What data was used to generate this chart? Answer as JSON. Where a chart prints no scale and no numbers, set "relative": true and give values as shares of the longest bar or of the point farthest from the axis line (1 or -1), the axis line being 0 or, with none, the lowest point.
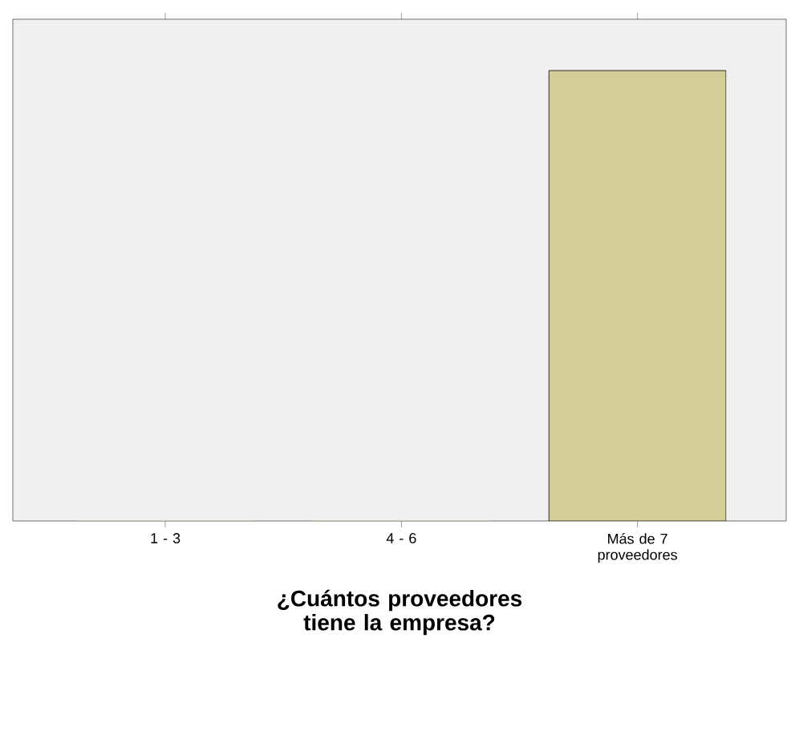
{
  "chart_data": {
    "type": "bar",
    "relative": true,
    "categories": [
      "1 - 3",
      "4 - 6",
      "Más de 7 proveedores"
    ],
    "values": [
      0,
      0,
      1
    ],
    "color": "#d3ce97",
    "xlabel": "¿Cuántos proveedores tiene la empresa?"
  }
}
